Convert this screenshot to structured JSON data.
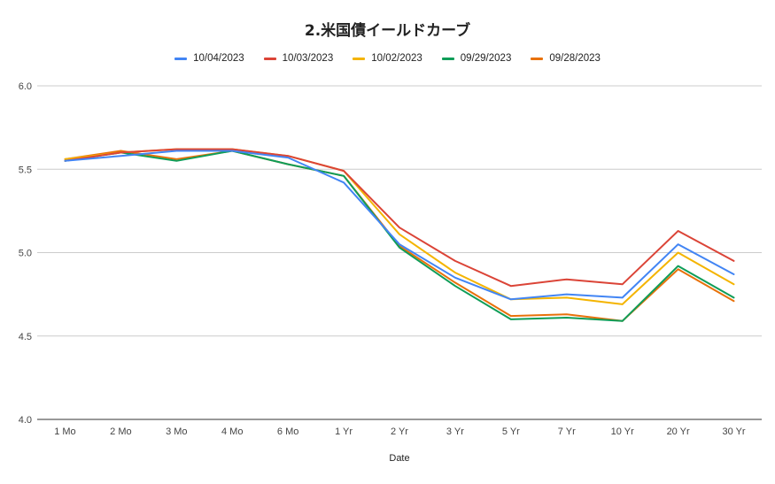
{
  "chart_data": {
    "type": "line",
    "title": "2.米国債イールドカーブ",
    "xlabel": "Date",
    "ylabel": "",
    "categories": [
      "1 Mo",
      "2 Mo",
      "3 Mo",
      "4 Mo",
      "6 Mo",
      "1 Yr",
      "2 Yr",
      "3 Yr",
      "5 Yr",
      "7 Yr",
      "10 Yr",
      "20 Yr",
      "30 Yr"
    ],
    "ylim": [
      4.0,
      6.0
    ],
    "yticks": [
      "4.0",
      "4.5",
      "5.0",
      "5.5",
      "6.0"
    ],
    "grid": true,
    "legend_position": "top",
    "series": [
      {
        "name": "10/04/2023",
        "color": "#4285F4",
        "values": [
          5.55,
          5.58,
          5.61,
          5.61,
          5.57,
          5.42,
          5.05,
          4.85,
          4.72,
          4.75,
          4.73,
          5.05,
          4.87
        ]
      },
      {
        "name": "10/03/2023",
        "color": "#DB4437",
        "values": [
          5.55,
          5.6,
          5.62,
          5.62,
          5.58,
          5.49,
          5.15,
          4.95,
          4.8,
          4.84,
          4.81,
          5.13,
          4.95
        ]
      },
      {
        "name": "10/02/2023",
        "color": "#F4B400",
        "values": [
          5.56,
          5.6,
          5.62,
          5.62,
          5.58,
          5.49,
          5.11,
          4.88,
          4.72,
          4.73,
          4.69,
          5.0,
          4.81
        ]
      },
      {
        "name": "09/29/2023",
        "color": "#0F9D58",
        "values": [
          5.55,
          5.6,
          5.55,
          5.61,
          5.53,
          5.46,
          5.03,
          4.8,
          4.6,
          4.61,
          4.59,
          4.92,
          4.73
        ]
      },
      {
        "name": "09/28/2023",
        "color": "#E8710A",
        "values": [
          5.56,
          5.61,
          5.56,
          5.61,
          5.53,
          5.46,
          5.04,
          4.82,
          4.62,
          4.63,
          4.59,
          4.9,
          4.71
        ]
      }
    ]
  }
}
